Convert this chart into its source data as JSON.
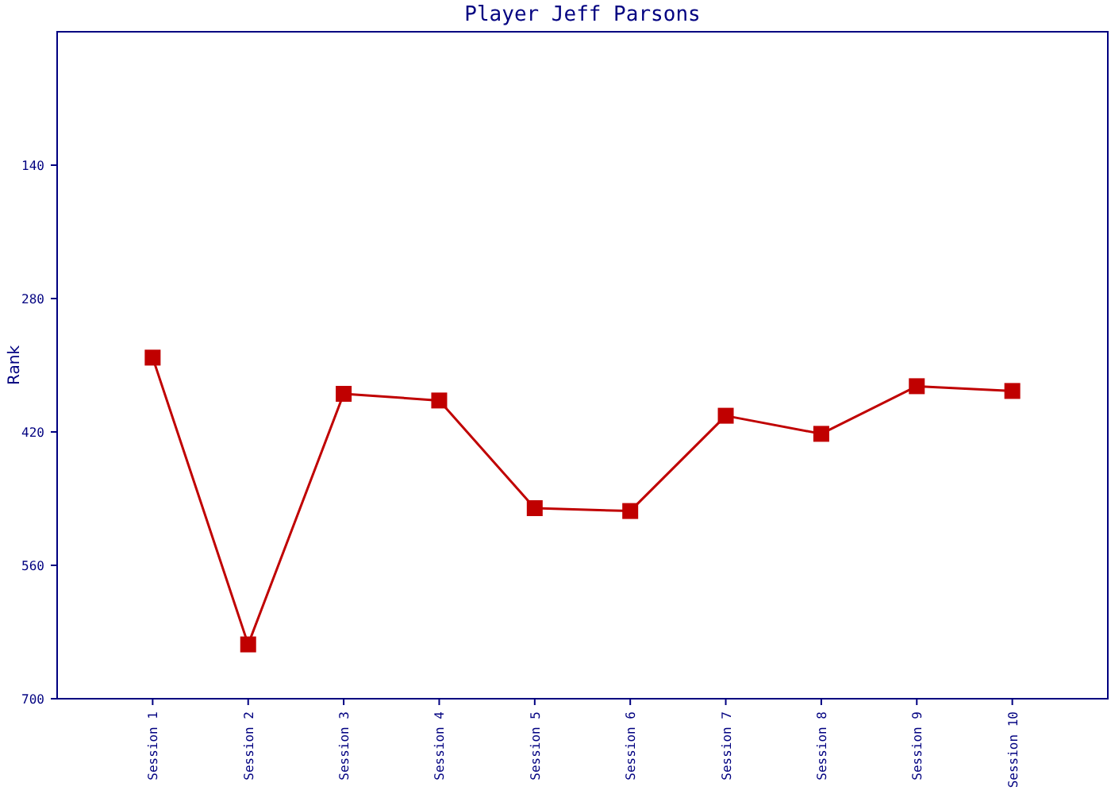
{
  "chart_data": {
    "type": "line",
    "title": "Player Jeff Parsons",
    "ylabel": "Rank",
    "categories": [
      "Session 1",
      "Session 2",
      "Session 3",
      "Session 4",
      "Session 5",
      "Session 6",
      "Session 7",
      "Session 8",
      "Session 9",
      "Session 10"
    ],
    "series": [
      {
        "color": "#c00000",
        "values": [
          342,
          643,
          380,
          387,
          500,
          503,
          403,
          422,
          372,
          377
        ]
      }
    ],
    "ylim": [
      700,
      0
    ],
    "yticks": [
      140,
      280,
      420,
      560,
      700
    ],
    "marker": "square",
    "line_style": "solid"
  }
}
